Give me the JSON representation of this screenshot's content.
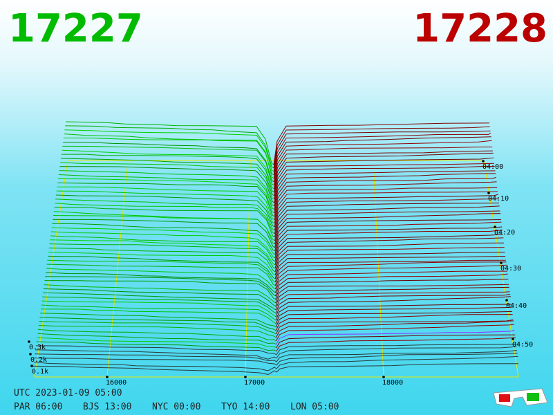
{
  "header": {
    "bid": "17227",
    "ask": "17228"
  },
  "price_axis": [
    "16000",
    "17000",
    "18000"
  ],
  "depth_axis": [
    "0.3k",
    "0.2k",
    "0.1k"
  ],
  "time_axis": [
    "04:00",
    "04:10",
    "04:20",
    "04:30",
    "04:40",
    "04:50"
  ],
  "footer": {
    "utc": "UTC 2023-01-09 05:00",
    "zones": [
      "PAR 06:00",
      "BJS 13:00",
      "NYC 00:00",
      "TYO 14:00",
      "LON 05:00"
    ]
  }
}
